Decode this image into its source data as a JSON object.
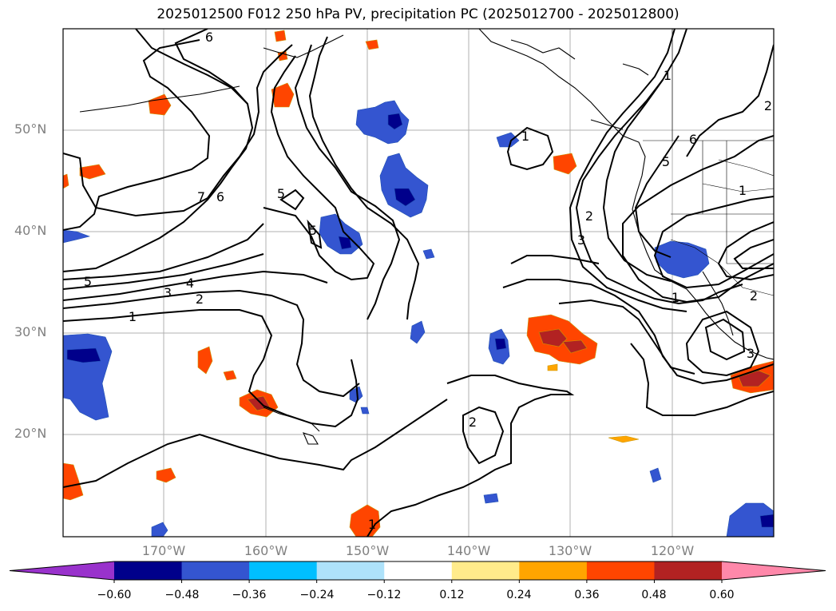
{
  "title": "2025012500 F012 250 hPa PV, precipitation PC (2025012700 - 2025012800)",
  "lat_labels": [
    "50°N",
    "40°N",
    "30°N",
    "20°N"
  ],
  "lon_labels": [
    "170°W",
    "160°W",
    "150°W",
    "140°W",
    "130°W",
    "120°W"
  ],
  "colorbar": {
    "colors": [
      "#9932CC",
      "#00008B",
      "#3455D0",
      "#00BFFF",
      "#AEE2FA",
      "#FFFFFF",
      "#FFEB8B",
      "#FFA500",
      "#FF4500",
      "#B22222",
      "#FF88AA"
    ],
    "tick_labels": [
      "−0.60",
      "−0.48",
      "−0.36",
      "−0.24",
      "−0.12",
      "0.12",
      "0.24",
      "0.36",
      "0.48",
      "0.60"
    ]
  },
  "contour_labels": [
    "6",
    "7",
    "6",
    "5",
    "5",
    "5",
    "4",
    "3",
    "2",
    "1",
    "1",
    "1",
    "2",
    "3",
    "2",
    "1",
    "5",
    "6",
    "2",
    "1",
    "3",
    "2",
    "1"
  ]
}
